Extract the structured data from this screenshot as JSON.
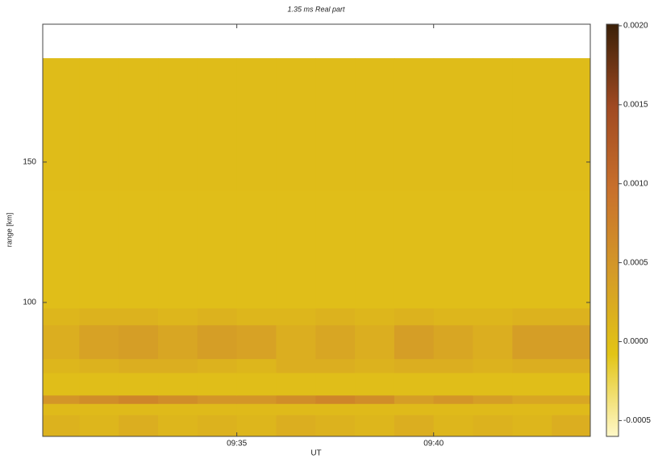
{
  "chart_data": {
    "type": "heatmap",
    "title": "1.35 ms Real part",
    "x_label": "UT",
    "y_label": "range [km]",
    "x_bins": [
      570,
      571,
      572,
      573,
      574,
      575,
      576,
      577,
      578,
      579,
      580,
      581,
      582,
      583,
      584
    ],
    "y_bins": [
      52.3,
      60,
      64,
      67,
      75,
      80,
      92,
      98,
      140,
      187
    ],
    "values": [
      [
        0.00015,
        0.0001,
        0.0002,
        0.0001,
        0.00015,
        0.0001,
        0.0002,
        0.00015,
        0.0001,
        0.0002,
        0.0001,
        0.00015,
        0.0001,
        0.0002
      ],
      [
        5e-05,
        5e-05,
        5e-05,
        5e-05,
        5e-05,
        5e-05,
        5e-05,
        5e-05,
        5e-05,
        5e-05,
        5e-05,
        5e-05,
        5e-05,
        5e-05
      ],
      [
        0.0005,
        0.0006,
        0.0007,
        0.0006,
        0.0005,
        0.0005,
        0.0006,
        0.0007,
        0.0006,
        0.0004,
        0.0005,
        0.0004,
        0.0003,
        0.0003
      ],
      [
        0.0,
        0.0,
        0.0,
        0.0,
        0.0,
        0.0,
        0.0,
        0.0,
        0.0,
        0.0,
        0.0,
        0.0,
        0.0,
        0.0
      ],
      [
        0.0001,
        0.00015,
        0.0002,
        0.0002,
        0.00015,
        0.0001,
        0.0002,
        0.0002,
        0.00015,
        0.0002,
        0.0002,
        0.00015,
        0.0002,
        0.0002
      ],
      [
        0.0002,
        0.00035,
        0.0004,
        0.0003,
        0.0004,
        0.00035,
        0.0002,
        0.0003,
        0.0002,
        0.0004,
        0.0003,
        0.0002,
        0.0004,
        0.0004
      ],
      [
        0.0001,
        0.00015,
        0.00015,
        0.0001,
        0.00015,
        0.0001,
        0.0001,
        0.00015,
        0.0001,
        0.00015,
        0.0001,
        0.0001,
        0.00015,
        0.00015
      ],
      [
        0.0,
        0.0,
        0.0,
        0.0,
        0.0,
        0.0,
        0.0,
        0.0,
        0.0,
        0.0,
        0.0,
        0.0,
        0.0,
        0.0
      ],
      [
        2e-05,
        2e-05,
        2e-05,
        2e-05,
        2e-05,
        2e-05,
        2e-05,
        2e-05,
        2e-05,
        2e-05,
        2e-05,
        2e-05,
        2e-05,
        2e-05
      ]
    ],
    "xlim": [
      570.07,
      583.98
    ],
    "ylim": [
      52.3,
      199.1
    ],
    "xticks": [
      {
        "value": 575,
        "label": "09:35"
      },
      {
        "value": 580,
        "label": "09:40"
      }
    ],
    "yticks": [
      100,
      150
    ],
    "clim": [
      -0.0006,
      0.00201
    ],
    "cticks": [
      {
        "value": -0.0005,
        "label": "-0.0005"
      },
      {
        "value": 0,
        "label": "0.0000"
      },
      {
        "value": 0.0005,
        "label": "0.0005"
      },
      {
        "value": 0.001,
        "label": "0.0010"
      },
      {
        "value": 0.0015,
        "label": "0.0015"
      },
      {
        "value": 0.002,
        "label": "0.0020"
      }
    ],
    "colorscale": [
      "#fff8c8",
      "#e2c416",
      "#d49a28",
      "#c8702c",
      "#a04a22",
      "#3a2008"
    ]
  }
}
